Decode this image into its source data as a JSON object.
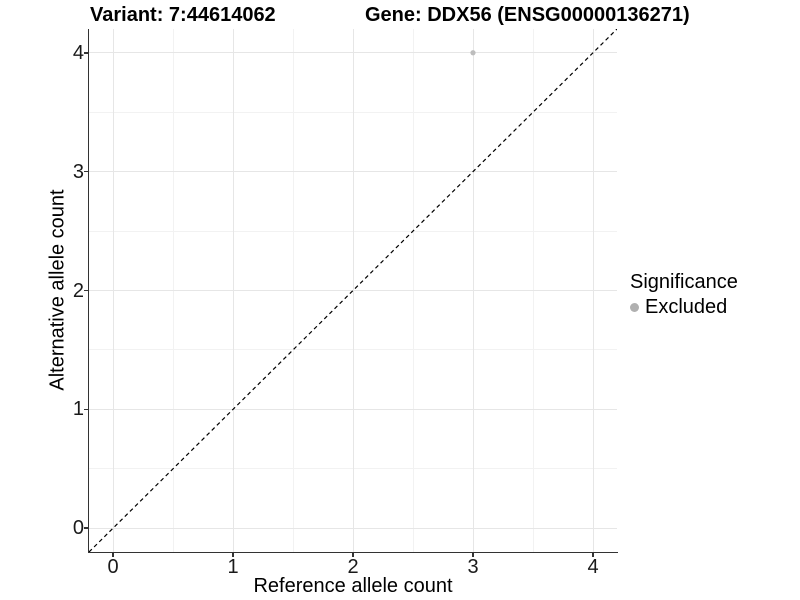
{
  "chart_data": {
    "type": "scatter",
    "title_left": "Variant: 7:44614062",
    "title_right": "Gene: DDX56 (ENSG00000136271)",
    "xlabel": "Reference allele count",
    "ylabel": "Alternative allele count",
    "xlim": [
      -0.2,
      4.2
    ],
    "ylim": [
      -0.2,
      4.2
    ],
    "x_ticks": [
      0,
      1,
      2,
      3,
      4
    ],
    "y_ticks": [
      0,
      1,
      2,
      3,
      4
    ],
    "x_minor": [
      0.5,
      1.5,
      2.5,
      3.5
    ],
    "y_minor": [
      0.5,
      1.5,
      2.5,
      3.5
    ],
    "grid": true,
    "series": [
      {
        "name": "Excluded",
        "color": "#bdbdbd",
        "point_radius": 2.6,
        "points": [
          [
            3,
            4
          ]
        ]
      }
    ],
    "reference_line": {
      "style": "dashed",
      "color": "#000000",
      "from": [
        -0.2,
        -0.2
      ],
      "to": [
        4.2,
        4.2
      ]
    },
    "legend": {
      "position": "right",
      "title": "Significance",
      "entries": [
        {
          "label": "Excluded",
          "color": "#b0b0b0"
        }
      ]
    },
    "colors": {
      "grid_major": "#e6e6e6",
      "grid_minor": "#f2f2f2",
      "axis": "#333333",
      "tick_label": "#1a1a1a",
      "background": "#ffffff"
    }
  }
}
